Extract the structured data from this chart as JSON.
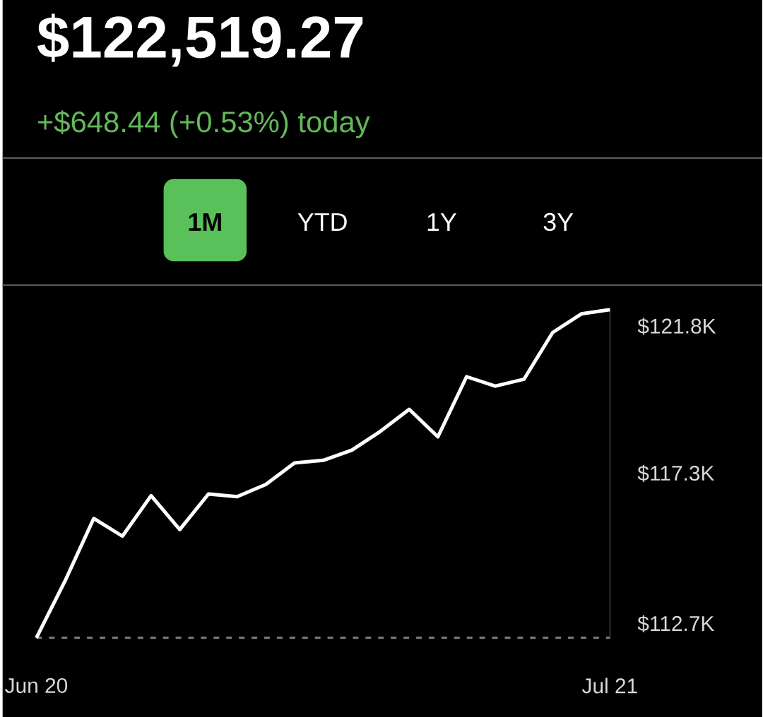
{
  "chart_data": {
    "type": "line",
    "title": "$122,519.27",
    "subtitle": "+$648.44 (+0.53%) today",
    "annotations": [
      "1M",
      "YTD",
      "1Y",
      "3Y"
    ],
    "categories": [
      "Jun 20",
      null,
      null,
      null,
      null,
      null,
      null,
      null,
      null,
      null,
      null,
      null,
      null,
      null,
      null,
      null,
      null,
      null,
      null,
      null,
      "Jul 21"
    ],
    "values": [
      112.27,
      114.01,
      115.92,
      115.38,
      116.62,
      115.58,
      116.67,
      116.59,
      116.96,
      117.62,
      117.7,
      118.01,
      118.59,
      119.26,
      118.42,
      120.26,
      119.97,
      120.18,
      121.61,
      122.18,
      122.31
    ],
    "color": "#ffffff",
    "ylim": [
      112.27,
      122.31
    ],
    "yticks": [
      {
        "value": 112.7,
        "label": "$112.7K"
      },
      {
        "value": 117.3,
        "label": "$117.3K"
      },
      {
        "value": 121.8,
        "label": "$121.8K"
      }
    ],
    "ref_lines": [
      {
        "axis": "y",
        "value": 112.27,
        "color": "#808080",
        "line_style": "dashed"
      }
    ]
  }
}
